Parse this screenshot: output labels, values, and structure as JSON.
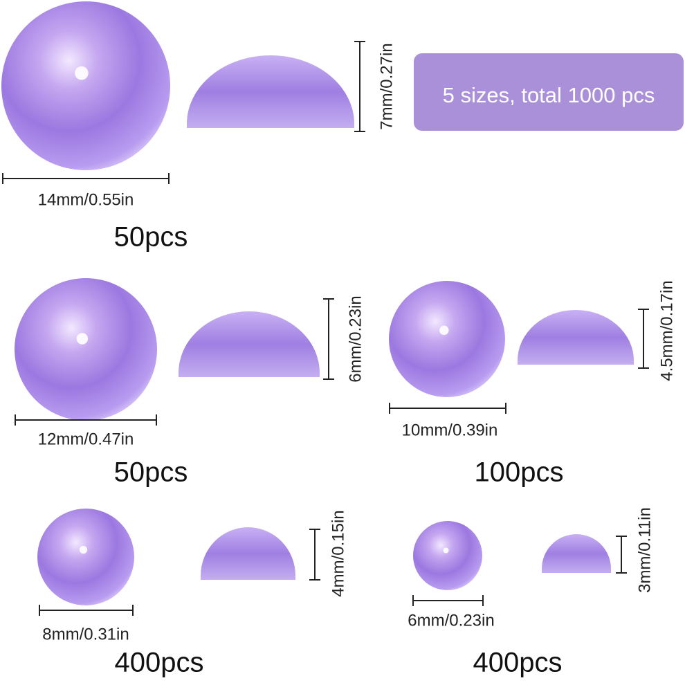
{
  "badge": "5 sizes, total 1000 pcs",
  "groups": [
    {
      "diameter": "14mm/0.55in",
      "height": "7mm/0.27in",
      "count": "50pcs"
    },
    {
      "diameter": "12mm/0.47in",
      "height": "6mm/0.23in",
      "count": "50pcs"
    },
    {
      "diameter": "10mm/0.39in",
      "height": "4.5mm/0.17in",
      "count": "100pcs"
    },
    {
      "diameter": "8mm/0.31in",
      "height": "4mm/0.15in",
      "count": "400pcs"
    },
    {
      "diameter": "6mm/0.23in",
      "height": "3mm/0.11in",
      "count": "400pcs"
    }
  ]
}
